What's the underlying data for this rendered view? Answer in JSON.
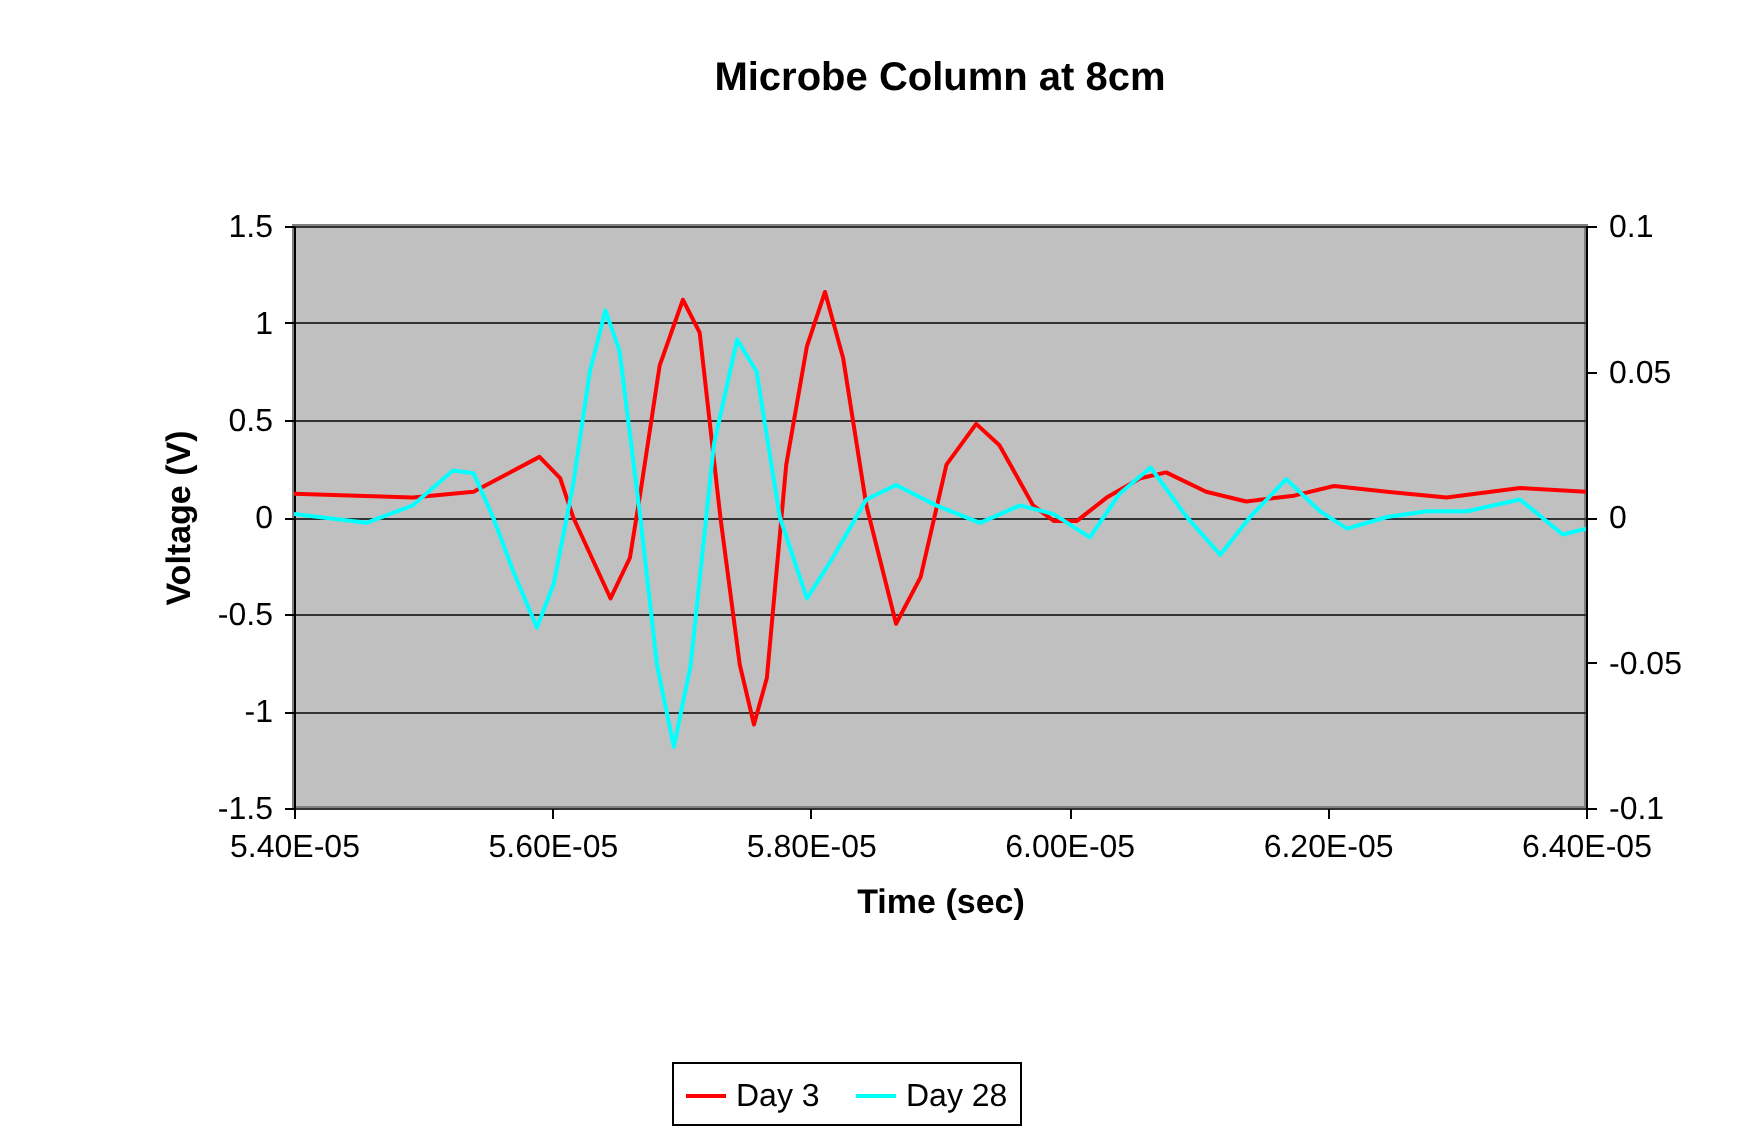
{
  "chart_data": {
    "type": "line",
    "title": "Microbe Column at 8cm",
    "xlabel": "Time (sec)",
    "ylabel": "Voltage (V)",
    "xlim": [
      5.4e-05,
      6.4e-05
    ],
    "xticks": [
      {
        "value": 5.4e-05,
        "label": "5.40E-05"
      },
      {
        "value": 5.6e-05,
        "label": "5.60E-05"
      },
      {
        "value": 5.8e-05,
        "label": "5.80E-05"
      },
      {
        "value": 6e-05,
        "label": "6.00E-05"
      },
      {
        "value": 6.2e-05,
        "label": "6.20E-05"
      },
      {
        "value": 6.4e-05,
        "label": "6.40E-05"
      }
    ],
    "ylim": [
      -1.5,
      1.5
    ],
    "yticks": [
      -1.5,
      -1,
      -0.5,
      0,
      0.5,
      1,
      1.5
    ],
    "y2lim": [
      -0.1,
      0.1
    ],
    "y2ticks": [
      -0.1,
      -0.05,
      0,
      0.05,
      0.1
    ],
    "grid": "y",
    "legend": "bottom",
    "line_style": "solid",
    "marker": "none",
    "series": [
      {
        "name": "Day 3",
        "color": "#ff0000",
        "x": [
          5.4e-05,
          5.492e-05,
          5.539e-05,
          5.59e-05,
          5.606e-05,
          5.616e-05,
          5.645e-05,
          5.66e-05,
          5.668e-05,
          5.683e-05,
          5.701e-05,
          5.714e-05,
          5.73e-05,
          5.745e-05,
          5.756e-05,
          5.766e-05,
          5.781e-05,
          5.797e-05,
          5.811e-05,
          5.825e-05,
          5.843e-05,
          5.866e-05,
          5.885e-05,
          5.905e-05,
          5.928e-05,
          5.946e-05,
          5.972e-05,
          5.988e-05,
          6.006e-05,
          6.029e-05,
          6.055e-05,
          6.075e-05,
          6.106e-05,
          6.137e-05,
          6.174e-05,
          6.205e-05,
          6.246e-05,
          6.292e-05,
          6.349e-05,
          6.4e-05
        ],
        "values": [
          0.12,
          0.1,
          0.13,
          0.31,
          0.2,
          0,
          -0.42,
          -0.21,
          0.12,
          0.78,
          1.12,
          0.95,
          0,
          -0.76,
          -1.07,
          -0.83,
          0.27,
          0.88,
          1.16,
          0.82,
          0.06,
          -0.55,
          -0.31,
          0.27,
          0.48,
          0.37,
          0.06,
          -0.02,
          -0.02,
          0.1,
          0.2,
          0.23,
          0.13,
          0.08,
          0.11,
          0.16,
          0.13,
          0.1,
          0.15,
          0.13
        ]
      },
      {
        "name": "Day 28",
        "color": "#00ffff",
        "axis": "y2",
        "x": [
          5.4e-05,
          5.456e-05,
          5.492e-05,
          5.523e-05,
          5.539e-05,
          5.554e-05,
          5.57e-05,
          5.588e-05,
          5.601e-05,
          5.616e-05,
          5.629e-05,
          5.641e-05,
          5.652e-05,
          5.668e-05,
          5.681e-05,
          5.694e-05,
          5.707e-05,
          5.725e-05,
          5.743e-05,
          5.758e-05,
          5.776e-05,
          5.797e-05,
          5.817e-05,
          5.843e-05,
          5.866e-05,
          5.897e-05,
          5.931e-05,
          5.962e-05,
          5.988e-05,
          6.016e-05,
          6.039e-05,
          6.063e-05,
          6.091e-05,
          6.117e-05,
          6.14e-05,
          6.168e-05,
          6.194e-05,
          6.215e-05,
          6.246e-05,
          6.277e-05,
          6.308e-05,
          6.349e-05,
          6.382e-05,
          6.4e-05
        ],
        "values": [
          0.001,
          -0.002,
          0.004,
          0.016,
          0.015,
          0,
          -0.019,
          -0.038,
          -0.023,
          0.011,
          0.05,
          0.071,
          0.057,
          0,
          -0.051,
          -0.079,
          -0.051,
          0.025,
          0.061,
          0.05,
          0,
          -0.028,
          -0.014,
          0.006,
          0.011,
          0.004,
          -0.002,
          0.004,
          0.001,
          -0.007,
          0.008,
          0.017,
          0,
          -0.013,
          0,
          0.013,
          0.002,
          -0.004,
          0,
          0.002,
          0.002,
          0.006,
          -0.006,
          -0.004
        ]
      }
    ]
  }
}
